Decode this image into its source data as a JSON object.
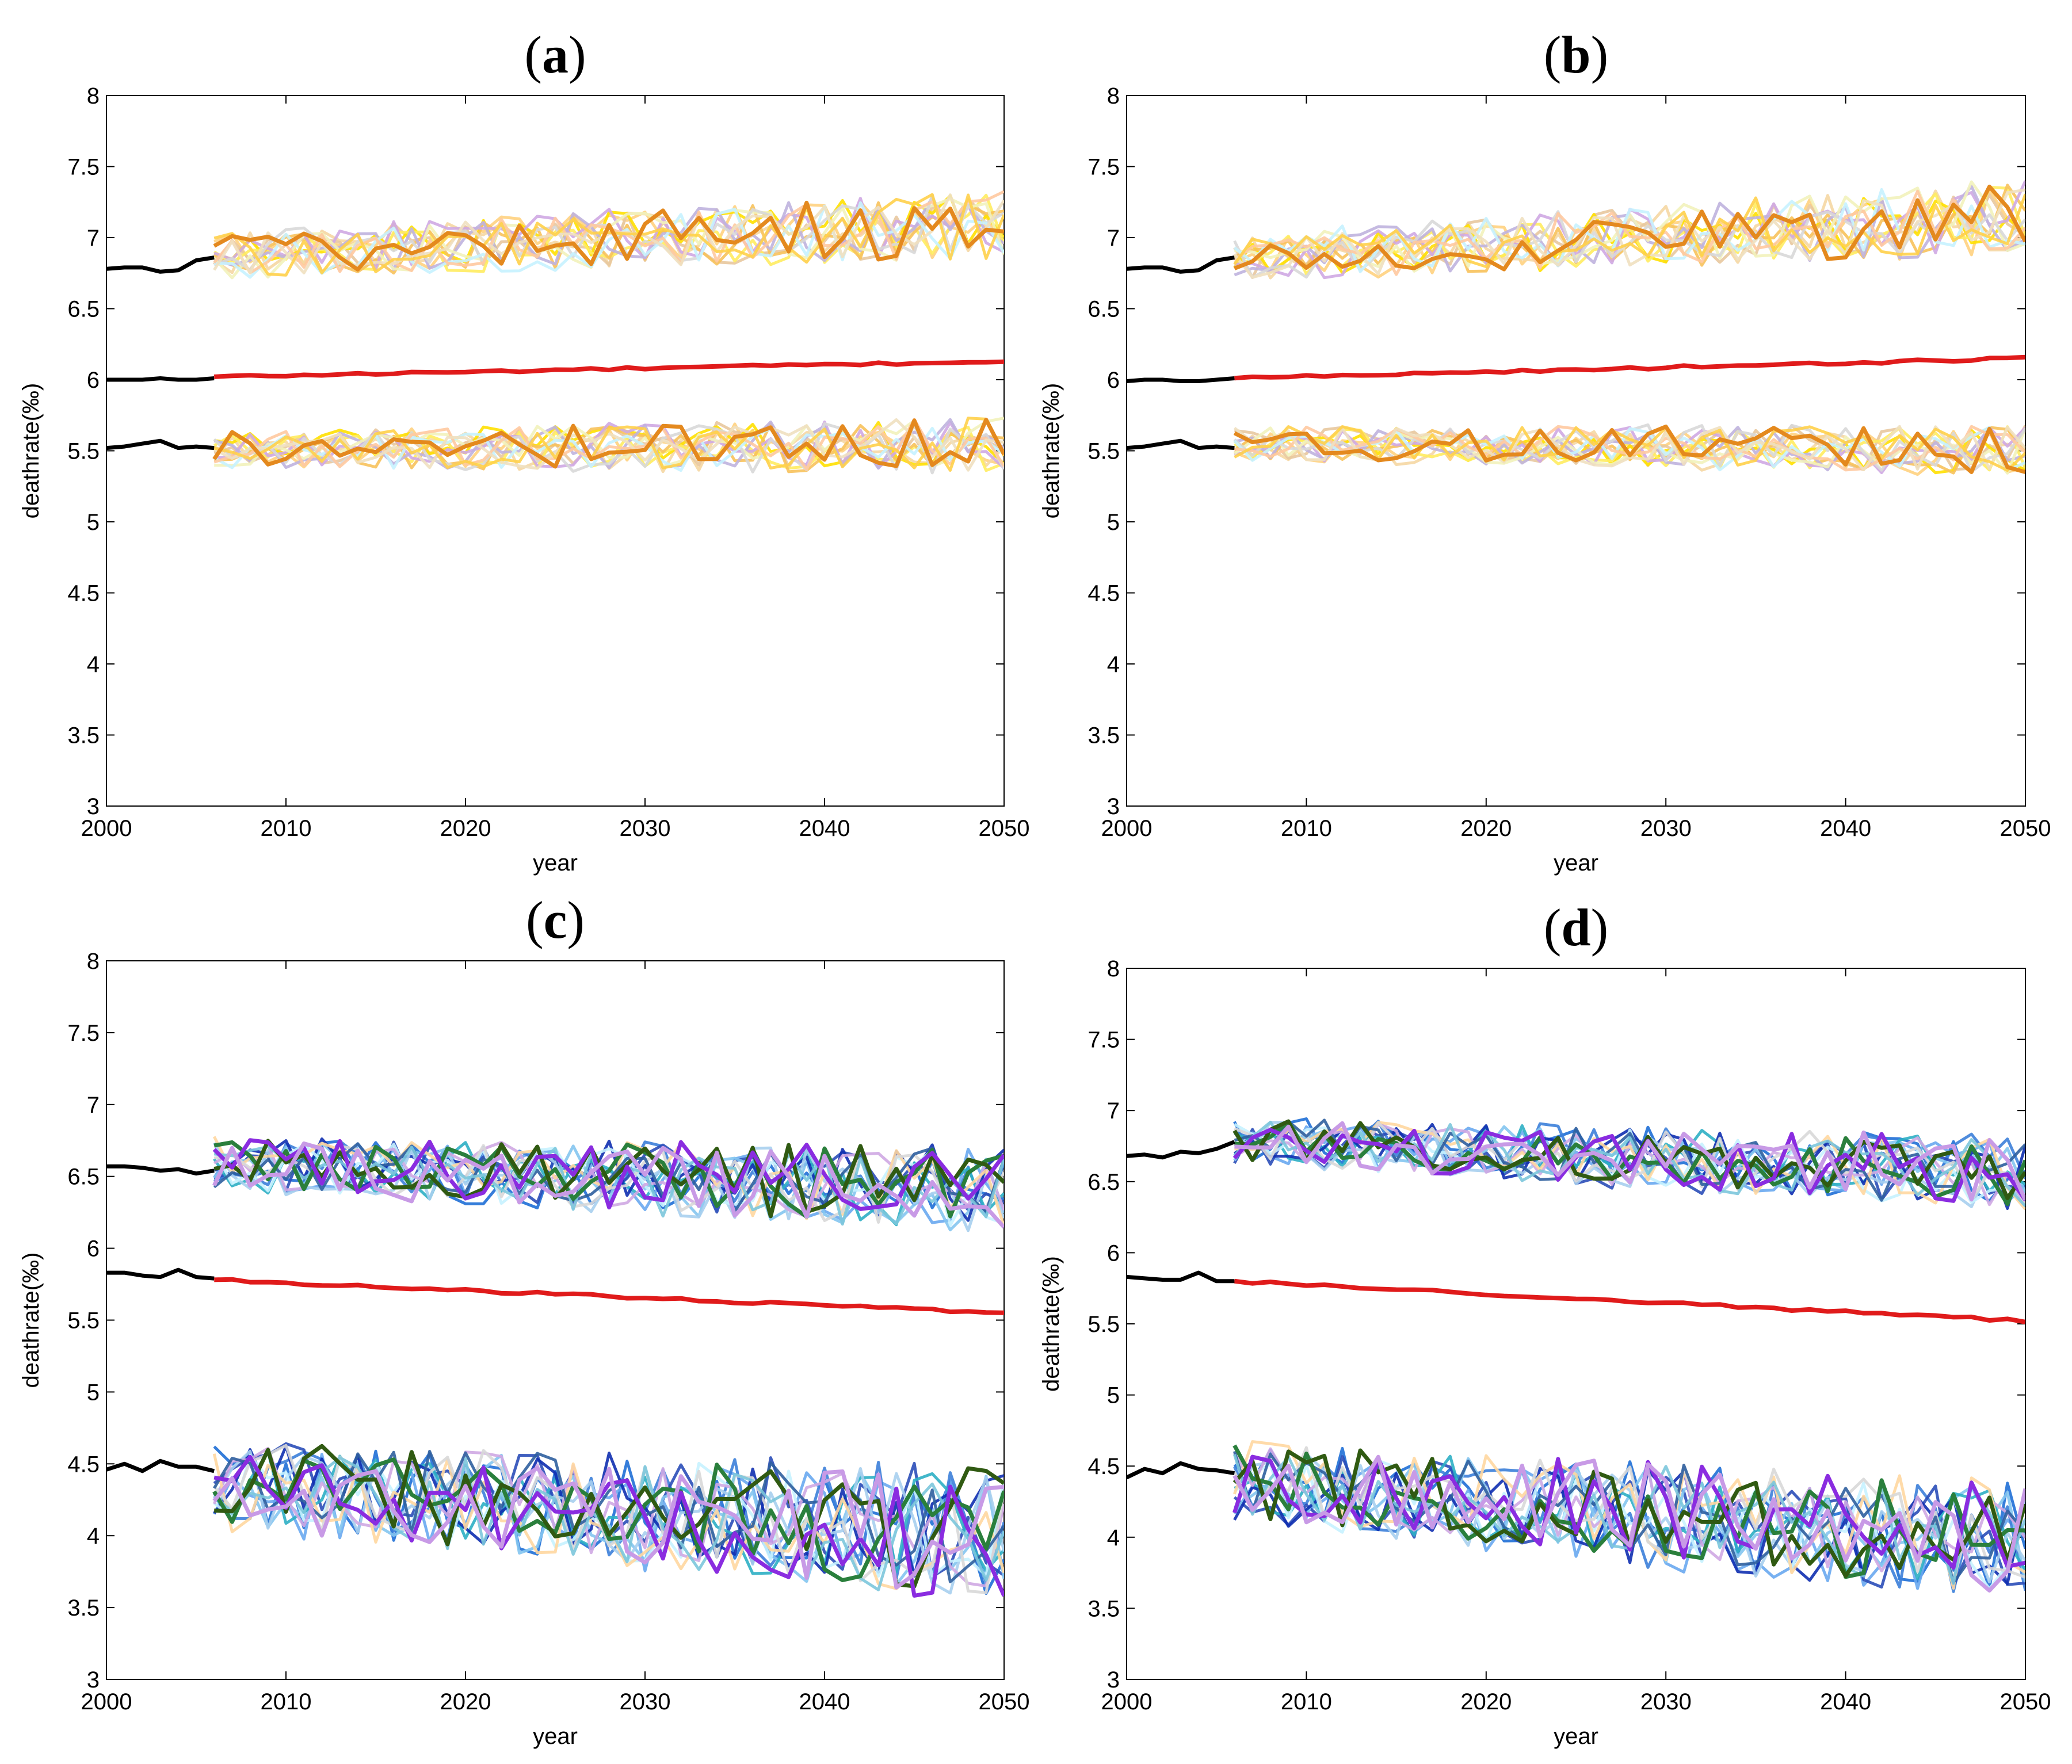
{
  "figure": {
    "rcp_colors": [
      "#ffd27f",
      "#f5d7a3",
      "#e8c89e",
      "#ffe000",
      "#ffec60",
      "#f7c25c",
      "#cfa8e3",
      "#bfb3de",
      "#f2f2bb",
      "#d8d8d8",
      "#c6f2ff",
      "#ffc9a0",
      "#f0e0c0",
      "#ffd04a"
    ],
    "rcp_highlight": "#e4891e",
    "ssp_colors": [
      "#1f6fd6",
      "#69a8f0",
      "#3c7fd9",
      "#2b4eb8",
      "#84c5f0",
      "#2eafc4",
      "#0f2fb0",
      "#a7cfee",
      "#c6f2ff",
      "#cfa8e3",
      "#ffd7a0",
      "#d8d8d8",
      "#2f5f9e",
      "#7cc7dc"
    ],
    "ssp_highlights": [
      "#2a7f3c",
      "#305a12",
      "#8a2ce0",
      "#c89ae6"
    ],
    "history_color": "#000000",
    "central_color": "#e01b1b"
  },
  "chart_data": [
    {
      "panel": "(a)",
      "type": "line",
      "xlabel": "year",
      "ylabel": "deathrate(‰)",
      "xlim": [
        2000,
        2050
      ],
      "ylim": [
        3,
        8
      ],
      "xticks": [
        "2000",
        "2010",
        "2020",
        "2030",
        "2040",
        "2050"
      ],
      "yticks": [
        "3",
        "3.5",
        "4",
        "4.5",
        "5",
        "5.5",
        "6",
        "6.5",
        "7",
        "7.5",
        "8"
      ],
      "palette": "rcp",
      "history": {
        "x": [
          2000,
          2001,
          2002,
          2003,
          2004,
          2005,
          2006
        ],
        "upper": [
          6.78,
          6.79,
          6.79,
          6.76,
          6.77,
          6.84,
          6.86
        ],
        "central": [
          6.0,
          6.0,
          6.0,
          6.01,
          6.0,
          6.0,
          6.01
        ],
        "lower": [
          5.52,
          5.53,
          5.55,
          5.57,
          5.52,
          5.53,
          5.52
        ]
      },
      "central": {
        "start": 6.02,
        "end": 6.13
      },
      "upper_band": {
        "start": 6.88,
        "end": 7.1,
        "spread": 0.15,
        "members": 14
      },
      "lower_band": {
        "start": 5.5,
        "end": 5.55,
        "spread": 0.12,
        "members": 14
      }
    },
    {
      "panel": "(b)",
      "type": "line",
      "xlabel": "year",
      "ylabel": "deathrate(‰)",
      "xlim": [
        2000,
        2050
      ],
      "ylim": [
        3,
        8
      ],
      "xticks": [
        "2000",
        "2010",
        "2020",
        "2030",
        "2040",
        "2050"
      ],
      "yticks": [
        "3",
        "3.5",
        "4",
        "4.5",
        "5",
        "5.5",
        "6",
        "6.5",
        "7",
        "7.5",
        "8"
      ],
      "palette": "rcp",
      "history": {
        "x": [
          2000,
          2001,
          2002,
          2003,
          2004,
          2005,
          2006
        ],
        "upper": [
          6.78,
          6.79,
          6.79,
          6.76,
          6.77,
          6.84,
          6.86
        ],
        "central": [
          5.99,
          6.0,
          6.0,
          5.99,
          5.99,
          6.0,
          6.01
        ],
        "lower": [
          5.52,
          5.53,
          5.55,
          5.57,
          5.52,
          5.53,
          5.52
        ]
      },
      "central": {
        "start": 6.01,
        "end": 6.15
      },
      "upper_band": {
        "start": 6.85,
        "end": 7.15,
        "spread": 0.16,
        "members": 14
      },
      "lower_band": {
        "start": 5.55,
        "end": 5.5,
        "spread": 0.11,
        "members": 14
      }
    },
    {
      "panel": "(c)",
      "type": "line",
      "xlabel": "year",
      "ylabel": "deathrate(‰)",
      "xlim": [
        2000,
        2050
      ],
      "ylim": [
        3,
        8
      ],
      "xticks": [
        "2000",
        "2010",
        "2020",
        "2030",
        "2040",
        "2050"
      ],
      "yticks": [
        "3",
        "3.5",
        "4",
        "4.5",
        "5",
        "5.5",
        "6",
        "6.5",
        "7",
        "7.5",
        "8"
      ],
      "palette": "ssp",
      "history": {
        "x": [
          2000,
          2001,
          2002,
          2003,
          2004,
          2005,
          2006
        ],
        "upper": [
          6.57,
          6.57,
          6.56,
          6.54,
          6.55,
          6.52,
          6.54
        ],
        "central": [
          5.83,
          5.83,
          5.81,
          5.8,
          5.85,
          5.8,
          5.79
        ],
        "lower": [
          4.46,
          4.5,
          4.45,
          4.52,
          4.48,
          4.48,
          4.45
        ]
      },
      "central": {
        "start": 5.78,
        "end": 5.55
      },
      "upper_band": {
        "start": 6.58,
        "end": 6.4,
        "spread": 0.18,
        "members": 14
      },
      "lower_band": {
        "start": 4.35,
        "end": 4.0,
        "spread": 0.28,
        "members": 14
      }
    },
    {
      "panel": "(d)",
      "type": "line",
      "xlabel": "year",
      "ylabel": "deathrate(‰)",
      "xlim": [
        2000,
        2050
      ],
      "ylim": [
        3,
        8
      ],
      "xticks": [
        "2000",
        "2010",
        "2020",
        "2030",
        "2040",
        "2050"
      ],
      "yticks": [
        "3",
        "3.5",
        "4",
        "4.5",
        "5",
        "5.5",
        "6",
        "6.5",
        "7",
        "7.5",
        "8"
      ],
      "palette": "ssp",
      "history": {
        "x": [
          2000,
          2001,
          2002,
          2003,
          2004,
          2005,
          2006
        ],
        "upper": [
          6.68,
          6.69,
          6.67,
          6.71,
          6.7,
          6.73,
          6.78
        ],
        "central": [
          5.83,
          5.82,
          5.81,
          5.81,
          5.86,
          5.8,
          5.8
        ],
        "lower": [
          4.42,
          4.48,
          4.45,
          4.52,
          4.48,
          4.47,
          4.45
        ]
      },
      "central": {
        "start": 5.8,
        "end": 5.52
      },
      "upper_band": {
        "start": 6.78,
        "end": 6.55,
        "spread": 0.16,
        "members": 14
      },
      "lower_band": {
        "start": 4.38,
        "end": 3.95,
        "spread": 0.26,
        "members": 14
      }
    }
  ]
}
